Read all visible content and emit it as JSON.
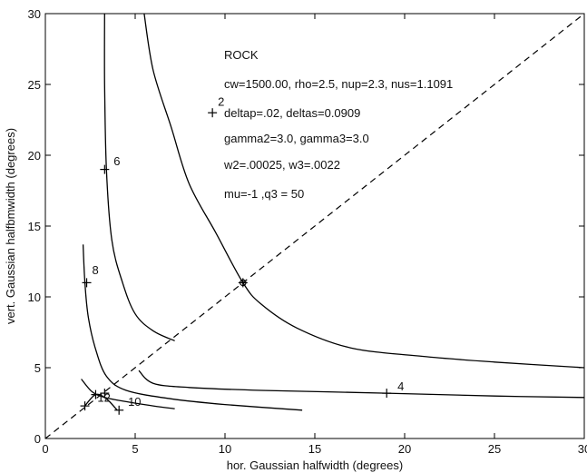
{
  "chart_data": {
    "type": "line",
    "title": "",
    "xlabel": "hor. Gaussian halfwidth (degrees)",
    "ylabel": "vert. Gaussian halfbmwidth (degrees)",
    "xlim": [
      0,
      30
    ],
    "ylim": [
      0,
      30
    ],
    "xticks": [
      0,
      5,
      10,
      15,
      20,
      25,
      30
    ],
    "yticks": [
      0,
      5,
      10,
      15,
      20,
      25,
      30
    ],
    "grid": false,
    "legend": "none",
    "annotations": [
      "ROCK",
      "cw=1500.00, rho=2.5, nup=2.3, nus=1.1091",
      "deltap=.02, deltas=0.0909",
      "gamma2=3.0, gamma3=3.0",
      "w2=.00025, w3=.0022",
      "mu=-1 ,q3 = 50"
    ],
    "reference_line": {
      "style": "dashed",
      "points": [
        [
          0,
          0
        ],
        [
          30,
          30
        ]
      ]
    },
    "series": [
      {
        "label": "2",
        "points": [
          [
            5.5,
            30
          ],
          [
            6.0,
            26
          ],
          [
            7.0,
            22
          ],
          [
            8.0,
            18
          ],
          [
            9.5,
            14.5
          ],
          [
            11.0,
            11.0
          ],
          [
            12.0,
            9.5
          ],
          [
            14.0,
            7.8
          ],
          [
            17.0,
            6.4
          ],
          [
            21.0,
            5.8
          ],
          [
            25.0,
            5.4
          ],
          [
            30.0,
            5.0
          ]
        ],
        "markers": [
          {
            "x": 9.3,
            "y": 23
          },
          {
            "x": 11.0,
            "y": 11.0
          }
        ]
      },
      {
        "label": "6",
        "points": [
          [
            3.3,
            30
          ],
          [
            3.3,
            25
          ],
          [
            3.4,
            19
          ],
          [
            3.7,
            14
          ],
          [
            4.3,
            11
          ],
          [
            5.0,
            8.8
          ],
          [
            6.0,
            7.6
          ],
          [
            7.2,
            6.9
          ]
        ],
        "markers": [
          {
            "x": 3.3,
            "y": 19
          }
        ]
      },
      {
        "label": "4",
        "points": [
          [
            5.2,
            4.8
          ],
          [
            6.0,
            3.9
          ],
          [
            8.0,
            3.6
          ],
          [
            12.0,
            3.4
          ],
          [
            19.0,
            3.2
          ],
          [
            25.0,
            3.0
          ],
          [
            30.0,
            2.9
          ]
        ],
        "markers": [
          {
            "x": 19.0,
            "y": 3.2
          }
        ]
      },
      {
        "label": "8",
        "points": [
          [
            2.1,
            13.7
          ],
          [
            2.2,
            11
          ],
          [
            2.4,
            8.5
          ],
          [
            2.8,
            6.3
          ],
          [
            3.4,
            4.4
          ],
          [
            4.5,
            3.4
          ],
          [
            7.0,
            2.8
          ],
          [
            10.0,
            2.4
          ],
          [
            14.3,
            2.0
          ]
        ],
        "markers": [
          {
            "x": 2.3,
            "y": 11
          }
        ]
      },
      {
        "label": "10",
        "points": [
          [
            2.0,
            4.2
          ],
          [
            2.6,
            3.3
          ],
          [
            3.3,
            2.9
          ],
          [
            4.5,
            2.6
          ],
          [
            6.0,
            2.3
          ],
          [
            7.2,
            2.1
          ]
        ],
        "markers": [
          {
            "x": 4.1,
            "y": 2.0
          }
        ]
      },
      {
        "label": "12",
        "points": [
          [
            2.2,
            2.3
          ],
          [
            2.8,
            3.1
          ],
          [
            3.4,
            2.8
          ],
          [
            4.0,
            2.0
          ]
        ],
        "markers": [
          {
            "x": 2.2,
            "y": 2.3
          },
          {
            "x": 2.8,
            "y": 3.1
          },
          {
            "x": 3.3,
            "y": 3.2
          }
        ]
      }
    ],
    "curve_labels": [
      {
        "text": "2",
        "x": 9.6,
        "y": 23.5
      },
      {
        "text": "6",
        "x": 3.8,
        "y": 19.3
      },
      {
        "text": "8",
        "x": 2.6,
        "y": 11.6
      },
      {
        "text": "4",
        "x": 19.6,
        "y": 3.4
      },
      {
        "text": "10",
        "x": 4.6,
        "y": 2.3
      },
      {
        "text": "12",
        "x": 2.9,
        "y": 2.6
      }
    ]
  }
}
